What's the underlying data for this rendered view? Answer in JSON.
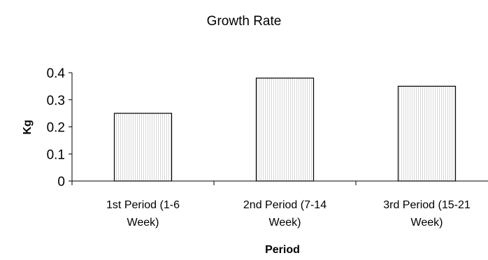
{
  "chart_data": {
    "type": "bar",
    "title": "Growth Rate",
    "xlabel": "Period",
    "ylabel": "Kg",
    "categories": [
      [
        "1st Period (1-6",
        "Week)"
      ],
      [
        "2nd Period (7-14",
        "Week)"
      ],
      [
        "3rd Period (15-21",
        "Week)"
      ]
    ],
    "values": [
      0.25,
      0.38,
      0.35
    ],
    "ylim": [
      0,
      0.4
    ],
    "yticks": [
      "0",
      "0.1",
      "0.2",
      "0.3",
      "0.4"
    ],
    "grid": false,
    "bar_fill": "#f6f6f6",
    "bar_stroke": "#000000"
  }
}
